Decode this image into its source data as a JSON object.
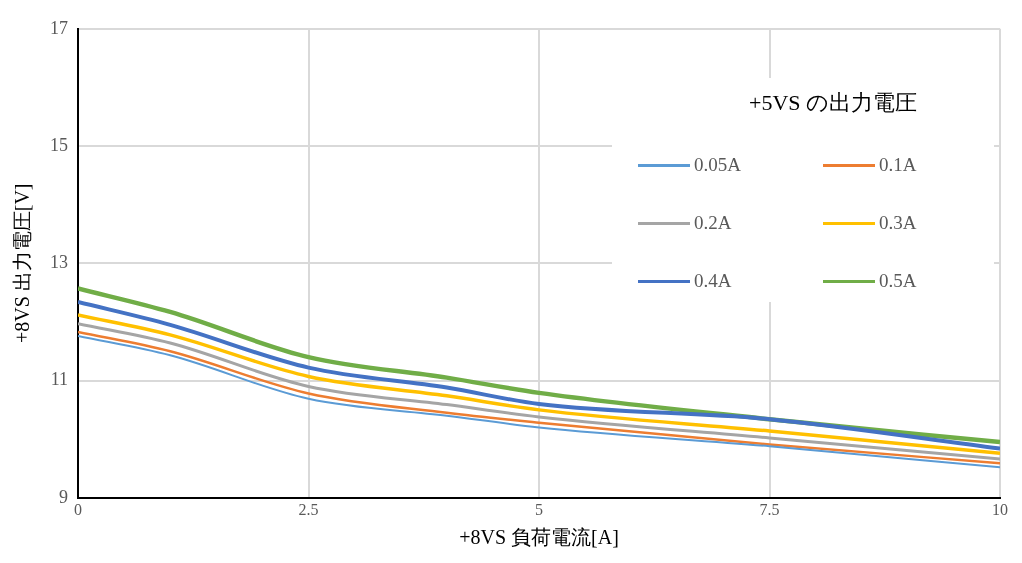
{
  "chart_data": {
    "type": "line",
    "xlabel": "+8VS 負荷電流[A]",
    "ylabel": "+8VS 出力電圧[V]",
    "legend_title": "+5VS の出力電圧",
    "legend": "top right",
    "grid": true,
    "marker": "none",
    "line_style": "solid",
    "x": [
      0,
      1,
      2.5,
      4,
      5,
      7.5,
      10
    ],
    "xlim": [
      0,
      10
    ],
    "xticks": [
      0,
      2.5,
      5,
      7.5,
      10
    ],
    "ylim": [
      9,
      17
    ],
    "yticks": [
      9,
      11,
      13,
      15,
      17
    ],
    "series": [
      {
        "name": "0.05A",
        "color": "#5b9bd5",
        "values": [
          11.76,
          11.43,
          10.69,
          10.4,
          10.2,
          9.88,
          9.52
        ]
      },
      {
        "name": "0.1A",
        "color": "#ed7d31",
        "values": [
          11.83,
          11.5,
          10.78,
          10.45,
          10.28,
          9.91,
          9.59
        ]
      },
      {
        "name": "0.2A",
        "color": "#a5a5a5",
        "values": [
          11.97,
          11.64,
          10.9,
          10.59,
          10.38,
          10.02,
          9.66
        ]
      },
      {
        "name": "0.3A",
        "color": "#ffc000",
        "values": [
          12.12,
          11.78,
          11.07,
          10.74,
          10.5,
          10.14,
          9.76
        ]
      },
      {
        "name": "0.4A",
        "color": "#4472c4",
        "values": [
          12.34,
          11.95,
          11.22,
          10.88,
          10.6,
          10.34,
          9.84
        ]
      },
      {
        "name": "0.5A",
        "color": "#70ad47",
        "values": [
          12.57,
          12.17,
          11.4,
          11.05,
          10.79,
          10.34,
          9.95
        ]
      }
    ]
  }
}
